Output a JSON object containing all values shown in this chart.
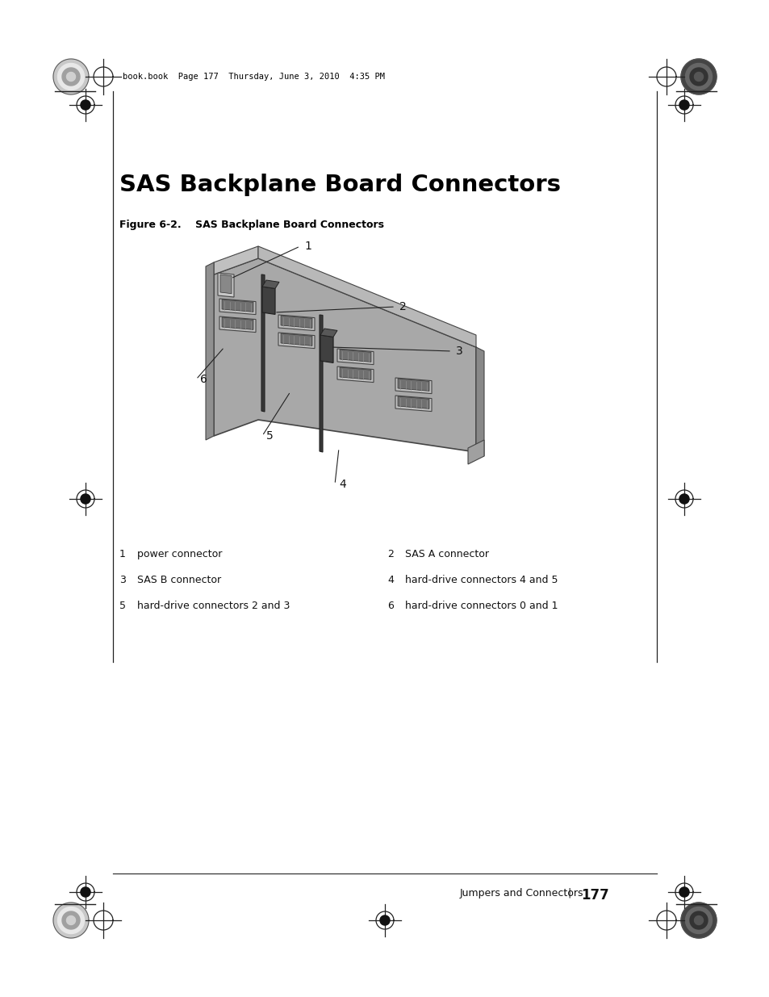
{
  "bg_color": "#ffffff",
  "header_text": "book.book  Page 177  Thursday, June 3, 2010  4:35 PM",
  "title": "SAS Backplane Board Connectors",
  "figure_caption": "Figure 6-2.    SAS Backplane Board Connectors",
  "legend_items": [
    [
      "1",
      "power connector",
      "2",
      "SAS A connector"
    ],
    [
      "3",
      "SAS B connector",
      "4",
      "hard-drive connectors 4 and 5"
    ],
    [
      "5",
      "hard-drive connectors 2 and 3",
      "6",
      "hard-drive connectors 0 and 1"
    ]
  ],
  "footer_left": "Jumpers and Connectors",
  "footer_sep": "|",
  "footer_page": "177"
}
